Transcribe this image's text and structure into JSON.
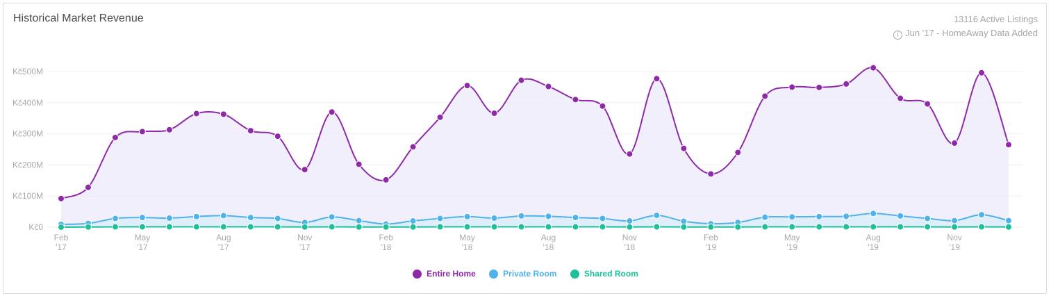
{
  "header": {
    "title": "Historical Market Revenue",
    "active_listings": "13116 Active Listings",
    "note": "Jun '17 - HomeAway Data Added"
  },
  "chart_data": {
    "type": "line",
    "title": "Historical Market Revenue",
    "xlabel": "",
    "ylabel": "",
    "ylim": [
      0,
      500000000
    ],
    "yticks": [
      0,
      100000000,
      200000000,
      300000000,
      400000000,
      500000000
    ],
    "ytick_labels": [
      "Kč0",
      "Kč100M",
      "Kč200M",
      "Kč300M",
      "Kč400M",
      "Kč500M"
    ],
    "x": [
      "2017-02",
      "2017-03",
      "2017-04",
      "2017-05",
      "2017-06",
      "2017-07",
      "2017-08",
      "2017-09",
      "2017-10",
      "2017-11",
      "2017-12",
      "2018-01",
      "2018-02",
      "2018-03",
      "2018-04",
      "2018-05",
      "2018-06",
      "2018-07",
      "2018-08",
      "2018-09",
      "2018-10",
      "2018-11",
      "2018-12",
      "2019-01",
      "2019-02",
      "2019-03",
      "2019-04",
      "2019-05",
      "2019-06",
      "2019-07",
      "2019-08",
      "2019-09",
      "2019-10",
      "2019-11",
      "2019-12",
      "2020-01"
    ],
    "xtick_labels": [
      {
        "month": "Feb",
        "year": "'17"
      },
      {
        "month": "May",
        "year": "'17"
      },
      {
        "month": "Aug",
        "year": "'17"
      },
      {
        "month": "Nov",
        "year": "'17"
      },
      {
        "month": "Feb",
        "year": "'18"
      },
      {
        "month": "May",
        "year": "'18"
      },
      {
        "month": "Aug",
        "year": "'18"
      },
      {
        "month": "Nov",
        "year": "'18"
      },
      {
        "month": "Feb",
        "year": "'19"
      },
      {
        "month": "May",
        "year": "'19"
      },
      {
        "month": "Aug",
        "year": "'19"
      },
      {
        "month": "Nov",
        "year": "'19"
      }
    ],
    "grid": true,
    "legend_position": "bottom-center",
    "series": [
      {
        "name": "Entire Home",
        "color": "#8e2aa8",
        "fill": "#ece9fb",
        "values": [
          92000000,
          128000000,
          288000000,
          307000000,
          313000000,
          365000000,
          363000000,
          310000000,
          292000000,
          185000000,
          370000000,
          202000000,
          152000000,
          258000000,
          353000000,
          455000000,
          366000000,
          472000000,
          452000000,
          410000000,
          389000000,
          235000000,
          477000000,
          253000000,
          171000000,
          240000000,
          421000000,
          450000000,
          449000000,
          460000000,
          512000000,
          414000000,
          396000000,
          270000000,
          496000000,
          265000000
        ]
      },
      {
        "name": "Private Room",
        "color": "#4fb3ea",
        "fill": "#d9eefb",
        "values": [
          9000000,
          12000000,
          28000000,
          31000000,
          29000000,
          34000000,
          37000000,
          31000000,
          28000000,
          15000000,
          33000000,
          21000000,
          10000000,
          20000000,
          28000000,
          34000000,
          29000000,
          36000000,
          35000000,
          31000000,
          28000000,
          20000000,
          38000000,
          19000000,
          11000000,
          15000000,
          32000000,
          33000000,
          34000000,
          35000000,
          44000000,
          36000000,
          28000000,
          21000000,
          40000000,
          21000000
        ]
      },
      {
        "name": "Shared Room",
        "color": "#1fbf9a",
        "fill": "#c8f0e5",
        "values": [
          0,
          500000,
          1000000,
          1000000,
          1000000,
          1000000,
          1000000,
          1000000,
          1000000,
          500000,
          1000000,
          500000,
          500000,
          500000,
          1000000,
          1000000,
          1000000,
          1000000,
          1000000,
          1000000,
          1000000,
          500000,
          1000000,
          500000,
          500000,
          500000,
          1000000,
          1000000,
          1000000,
          1000000,
          1000000,
          1000000,
          1000000,
          500000,
          1000000,
          500000
        ]
      }
    ]
  }
}
